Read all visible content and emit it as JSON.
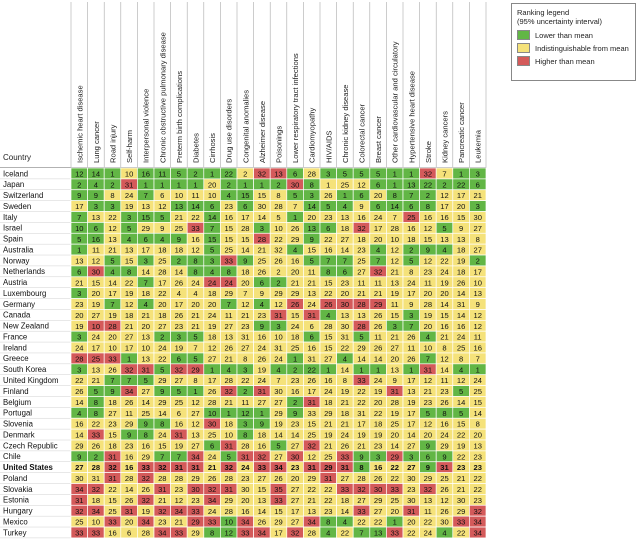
{
  "chart_data": {
    "type": "heatmap",
    "title": "",
    "row_header": "Country",
    "columns": [
      "Ischemic heart disease",
      "Lung cancer",
      "Road injury",
      "Self-harm",
      "Interpersonal violence",
      "Chronic obstructive pulmonary disease",
      "Preterm birth complications",
      "Diabetes",
      "Cirrhosis",
      "Drug use disorders",
      "Congenital anomalies",
      "Alzheimer disease",
      "Poisonings",
      "Lower respiratory tract infections",
      "Cardiomyopathy",
      "HIV/AIDS",
      "Chronic kidney disease",
      "Colorectal cancer",
      "Breast cancer",
      "Other cardiovascular and circulatory",
      "Hypertensive heart disease",
      "Stroke",
      "Kidney cancers",
      "Pancreatic cancer",
      "Leukemia"
    ],
    "rows": [
      "Iceland",
      "Japan",
      "Switzerland",
      "Sweden",
      "Italy",
      "Israel",
      "Spain",
      "Australia",
      "Norway",
      "Netherlands",
      "Austria",
      "Luxembourg",
      "Germany",
      "Canada",
      "New Zealand",
      "France",
      "Ireland",
      "Greece",
      "South Korea",
      "United Kingdom",
      "Finland",
      "Belgium",
      "Portugal",
      "Slovenia",
      "Denmark",
      "Czech Republic",
      "Chile",
      "United States",
      "Poland",
      "Slovakia",
      "Estonia",
      "Hungary",
      "Mexico",
      "Turkey"
    ],
    "highlight_row": "United States",
    "values": [
      [
        12,
        14,
        1,
        10,
        16,
        11,
        5,
        2,
        1,
        22,
        2,
        32,
        13,
        6,
        28,
        3,
        5,
        5,
        5,
        1,
        1,
        32,
        7,
        1,
        3
      ],
      [
        2,
        4,
        2,
        31,
        1,
        1,
        1,
        1,
        20,
        2,
        1,
        1,
        2,
        30,
        8,
        1,
        25,
        12,
        6,
        1,
        13,
        22,
        2,
        22,
        6
      ],
      [
        9,
        9,
        8,
        24,
        7,
        6,
        10,
        11,
        10,
        4,
        15,
        15,
        8,
        5,
        3,
        26,
        1,
        6,
        20,
        8,
        7,
        2,
        12,
        17,
        21
      ],
      [
        17,
        3,
        3,
        19,
        13,
        12,
        13,
        14,
        6,
        23,
        6,
        30,
        28,
        7,
        14,
        5,
        4,
        9,
        6,
        14,
        6,
        8,
        17,
        20,
        3
      ],
      [
        7,
        13,
        22,
        3,
        15,
        5,
        21,
        22,
        14,
        16,
        17,
        14,
        5,
        1,
        20,
        23,
        13,
        16,
        24,
        7,
        25,
        16,
        16,
        15,
        30
      ],
      [
        10,
        6,
        12,
        5,
        29,
        9,
        25,
        33,
        7,
        15,
        28,
        3,
        10,
        26,
        13,
        6,
        18,
        32,
        17,
        28,
        16,
        12,
        5,
        9,
        27
      ],
      [
        5,
        16,
        13,
        4,
        6,
        4,
        9,
        16,
        15,
        15,
        15,
        28,
        22,
        29,
        9,
        22,
        27,
        18,
        20,
        10,
        18,
        15,
        13,
        13,
        8
      ],
      [
        1,
        11,
        21,
        13,
        17,
        18,
        18,
        12,
        5,
        25,
        14,
        21,
        32,
        4,
        15,
        16,
        14,
        23,
        4,
        12,
        2,
        9,
        4,
        18,
        27
      ],
      [
        13,
        12,
        5,
        15,
        3,
        25,
        2,
        8,
        3,
        33,
        9,
        25,
        26,
        16,
        5,
        7,
        7,
        25,
        7,
        12,
        5,
        12,
        22,
        19,
        2
      ],
      [
        6,
        30,
        4,
        8,
        14,
        28,
        14,
        8,
        4,
        8,
        18,
        26,
        2,
        20,
        11,
        8,
        6,
        27,
        32,
        21,
        8,
        23,
        24,
        18,
        17
      ],
      [
        21,
        15,
        14,
        22,
        7,
        17,
        26,
        24,
        24,
        24,
        20,
        6,
        2,
        21,
        21,
        15,
        23,
        11,
        11,
        13,
        24,
        11,
        19,
        26,
        10
      ],
      [
        3,
        20,
        17,
        19,
        18,
        22,
        4,
        4,
        18,
        29,
        7,
        9,
        29,
        29,
        13,
        22,
        20,
        21,
        21,
        19,
        17,
        20,
        20,
        14,
        13
      ],
      [
        23,
        19,
        7,
        12,
        4,
        20,
        17,
        20,
        20,
        7,
        12,
        4,
        12,
        26,
        24,
        26,
        30,
        28,
        29,
        11,
        9,
        28,
        14,
        31,
        9
      ],
      [
        20,
        27,
        19,
        18,
        21,
        18,
        26,
        21,
        24,
        11,
        21,
        23,
        31,
        15,
        31,
        4,
        13,
        13,
        26,
        15,
        3,
        19,
        15,
        14,
        12
      ],
      [
        19,
        10,
        28,
        21,
        20,
        27,
        23,
        21,
        19,
        27,
        23,
        9,
        3,
        24,
        6,
        28,
        30,
        28,
        26,
        3,
        7,
        20,
        16,
        16,
        12
      ],
      [
        3,
        24,
        20,
        27,
        13,
        2,
        3,
        5,
        18,
        13,
        31,
        16,
        10,
        18,
        6,
        15,
        31,
        5,
        11,
        21,
        26,
        4,
        21,
        24,
        11
      ],
      [
        24,
        17,
        10,
        17,
        10,
        24,
        19,
        7,
        12,
        26,
        27,
        24,
        31,
        25,
        16,
        15,
        22,
        29,
        26,
        27,
        11,
        10,
        8,
        25,
        16
      ],
      [
        28,
        25,
        33,
        1,
        13,
        22,
        6,
        5,
        27,
        21,
        8,
        26,
        24,
        1,
        31,
        27,
        4,
        14,
        14,
        20,
        26,
        7,
        12,
        8,
        7
      ],
      [
        3,
        13,
        26,
        32,
        31,
        5,
        32,
        29,
        1,
        4,
        3,
        19,
        4,
        2,
        22,
        1,
        14,
        1,
        1,
        13,
        1,
        31,
        14,
        4,
        1
      ],
      [
        22,
        21,
        7,
        7,
        5,
        29,
        27,
        8,
        17,
        28,
        22,
        24,
        7,
        23,
        26,
        16,
        8,
        33,
        24,
        9,
        17,
        12,
        11,
        12,
        24
      ],
      [
        26,
        5,
        9,
        34,
        27,
        9,
        5,
        1,
        26,
        32,
        2,
        31,
        30,
        16,
        17,
        24,
        19,
        22,
        19,
        31,
        13,
        21,
        23,
        5,
        25
      ],
      [
        14,
        8,
        18,
        26,
        14,
        29,
        25,
        12,
        28,
        21,
        11,
        27,
        27,
        2,
        31,
        18,
        21,
        22,
        20,
        28,
        19,
        23,
        26,
        14,
        15
      ],
      [
        4,
        8,
        27,
        11,
        25,
        14,
        6,
        27,
        10,
        1,
        12,
        1,
        29,
        9,
        33,
        29,
        18,
        31,
        22,
        19,
        17,
        5,
        8,
        5,
        14
      ],
      [
        16,
        22,
        23,
        29,
        9,
        8,
        16,
        12,
        30,
        18,
        3,
        9,
        19,
        23,
        15,
        21,
        21,
        17,
        18,
        25,
        17,
        12,
        16,
        15,
        8
      ],
      [
        14,
        33,
        15,
        9,
        8,
        24,
        31,
        13,
        25,
        10,
        8,
        18,
        14,
        14,
        25,
        19,
        24,
        19,
        19,
        20,
        14,
        20,
        24,
        22,
        20
      ],
      [
        29,
        26,
        18,
        23,
        16,
        15,
        19,
        27,
        6,
        31,
        28,
        16,
        5,
        27,
        32,
        21,
        26,
        21,
        23,
        14,
        27,
        9,
        29,
        19,
        13
      ],
      [
        9,
        2,
        31,
        16,
        29,
        7,
        7,
        34,
        24,
        5,
        31,
        32,
        27,
        30,
        12,
        25,
        33,
        9,
        3,
        29,
        3,
        6,
        9,
        22,
        23
      ],
      [
        27,
        28,
        32,
        16,
        33,
        32,
        31,
        31,
        21,
        32,
        24,
        33,
        34,
        23,
        31,
        29,
        31,
        8,
        16,
        22,
        27,
        9,
        31,
        23,
        23
      ],
      [
        30,
        31,
        31,
        28,
        32,
        28,
        28,
        29,
        26,
        28,
        23,
        27,
        26,
        20,
        29,
        31,
        27,
        28,
        26,
        22,
        30,
        29,
        25,
        21,
        22
      ],
      [
        34,
        32,
        22,
        14,
        26,
        31,
        23,
        30,
        32,
        31,
        30,
        15,
        35,
        27,
        22,
        22,
        33,
        32,
        30,
        33,
        23,
        32,
        26,
        21,
        22
      ],
      [
        31,
        18,
        15,
        26,
        32,
        21,
        12,
        23,
        34,
        29,
        20,
        13,
        33,
        27,
        21,
        22,
        18,
        27,
        29,
        25,
        30,
        13,
        12,
        30,
        23
      ],
      [
        32,
        34,
        25,
        31,
        19,
        32,
        34,
        33,
        24,
        28,
        16,
        14,
        15,
        17,
        13,
        23,
        14,
        33,
        27,
        20,
        31,
        11,
        26,
        29,
        32
      ],
      [
        25,
        10,
        33,
        20,
        34,
        23,
        21,
        29,
        33,
        10,
        34,
        26,
        29,
        27,
        34,
        8,
        4,
        22,
        22,
        1,
        20,
        22,
        30,
        33,
        34
      ],
      [
        33,
        33,
        16,
        6,
        28,
        34,
        33,
        29,
        8,
        12,
        33,
        34,
        17,
        32,
        28,
        4,
        22,
        7,
        13,
        33,
        22,
        24,
        4,
        22,
        34
      ]
    ],
    "status": [
      "GGGYGGGGGGYRRGYGGGGGGRYGG",
      "GGGRGGGGYGGGGRGYYYGGGGGGG",
      "GGYYGYYYYGGYYGGYGGYGGGYYY",
      "YGGYYYGGGYGYYYGGGYGGGGYYG",
      "GYYGGGYYGYYYYGYYYYYYRYYYY",
      "GGYGYYYRGYYGYYGGYRYYYYGYY",
      "GGYGGGGYGYYRYYGYYYYYYYYYY",
      "GYYYYYYYGYYYYGYYYYGYGGGYY",
      "YYGYGYGGGRGYYYGGGYGYGYYYG",
      "GRGGYYYGGGYYYYYGGYRYYYYYY",
      "YYYYGYYYRRYGGYYYYYYYYYYYY",
      "GYYYYYYYYYYYYYYYYYYYYYYYY",
      "YYGYGYYYYGYGYRYRRRRYYYYYY",
      "YYYYYYYYYYYYRYRGYYYYGYYYY",
      "YRRYYYYYYYYGGYYYYRYGGYYYY",
      "GYYYYGGGYYYYYYGYYGYYYGYYY",
      "YYYYYYYYYYYYYYYYYYYYYYYYY",
      "RRRGYYGGYYYYYGYYGYYYYGYYY",
      "GYYRRGRRGGGYGGGGYGGYGRYGG",
      "YYGGGYYYYYYYYYYYYRYYYYYYY",
      "YGGRYGGGYRGRYYYYYYYRYYYGY",
      "YGYYYYYYYYYYYGRYYYYYYYYYY",
      "GGYYYYYYGGGGYGYYYYYYYGGGY",
      "YYYYGGYYRYGGYYYYYYYYYYYYY",
      "YRYGGYRYYYGYYYYYYYYYYYYYY",
      "YYYYYYYYGRYYGYRYYYYYYGYYY",
      "GGRYYGGRYGRRYRYYRGGRGGGYY",
      "YYRYRRRRYRYRRYRRRGYYYGRYY",
      "YYRYRYYYYYYYYYYRYYYYYYYYY",
      "RRYYYRYRRRYYRYYYRRRRYRYYY",
      "RYYYRYYYRYYYRYYYYYYYYYYYY",
      "RRYRYRRRYYYYYYYYYRYYRYYYR",
      "YYRYRYYRRGRYYYRGGYYGYYYRR",
      "RRYYYRRYGGRRYRYGYGGRYYGYR"
    ]
  },
  "legend": {
    "title_line1": "Ranking legend",
    "title_line2": "(95% uncertainty interval)",
    "items": [
      {
        "label": "Lower than mean",
        "color": "#62b645"
      },
      {
        "label": "Indistinguishable from mean",
        "color": "#f5e27a"
      },
      {
        "label": "Higher than mean",
        "color": "#d45a5a"
      }
    ]
  },
  "colors": {
    "G": "#62b645",
    "Y": "#f5e27a",
    "R": "#d45a5a",
    "grid": "#ffffff"
  }
}
